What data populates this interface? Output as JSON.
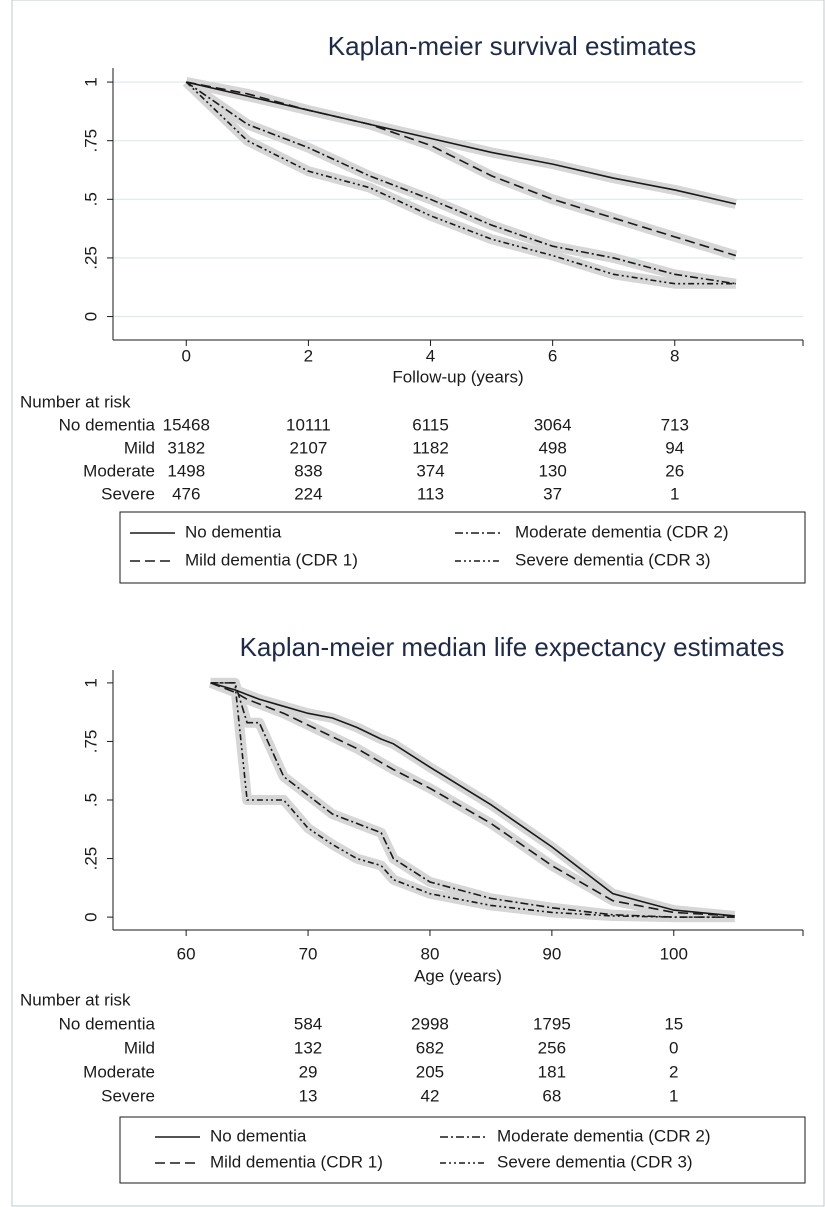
{
  "chart_data": [
    {
      "type": "line",
      "title": "Kaplan-meier survival estimates",
      "xlabel": "Follow-up (years)",
      "x": [
        0,
        1,
        2,
        3,
        4,
        5,
        6,
        7,
        8,
        9
      ],
      "xlim": [
        -1.2,
        10.1
      ],
      "xticks": [
        0,
        2,
        4,
        6,
        8
      ],
      "ylim": [
        -0.1,
        1.06
      ],
      "yticks": [
        0,
        {
          "value": 0.25,
          "label": ".25"
        },
        {
          "value": 0.5,
          "label": ".5"
        },
        {
          "value": 0.75,
          "label": ".75"
        },
        1
      ],
      "grid": true,
      "series": [
        {
          "name": "No dementia",
          "color": "#1a1a1a",
          "dash": "none",
          "values": [
            1,
            0.94,
            0.88,
            0.82,
            0.76,
            0.7,
            0.65,
            0.59,
            0.54,
            0.48
          ]
        },
        {
          "name": "Mild dementia (CDR 1)",
          "color": "#1a1a1a",
          "dash": "10,5",
          "values": [
            1,
            0.95,
            0.88,
            0.82,
            0.73,
            0.6,
            0.5,
            0.42,
            0.34,
            0.26
          ]
        },
        {
          "name": "Moderate dementia (CDR 2)",
          "color": "#1a1a1a",
          "dash": "8,3,2,3",
          "values": [
            1,
            0.82,
            0.72,
            0.6,
            0.5,
            0.39,
            0.3,
            0.25,
            0.18,
            0.14
          ]
        },
        {
          "name": "Severe dementia (CDR 3)",
          "color": "#1a1a1a",
          "dash": "6,3,2,3,2,3",
          "values": [
            1,
            0.75,
            0.62,
            0.55,
            0.43,
            0.33,
            0.26,
            0.18,
            0.14,
            0.14
          ]
        }
      ],
      "risk_table": {
        "title": "Number at risk",
        "rows": [
          {
            "label": "No dementia",
            "values": [
              15468,
              10111,
              6115,
              3064,
              713
            ]
          },
          {
            "label": "Mild",
            "values": [
              3182,
              2107,
              1182,
              498,
              94
            ]
          },
          {
            "label": "Moderate",
            "values": [
              1498,
              838,
              374,
              130,
              26
            ]
          },
          {
            "label": "Severe",
            "values": [
              476,
              224,
              113,
              37,
              1
            ]
          }
        ]
      }
    },
    {
      "type": "line",
      "title": "Kaplan-meier median life expectancy estimates",
      "xlabel": "Age (years)",
      "x": [
        62,
        64,
        65,
        66,
        68,
        70,
        72,
        74,
        76,
        77,
        80,
        85,
        90,
        95,
        100,
        105
      ],
      "xlim": [
        54,
        110.6
      ],
      "xticks": [
        60,
        70,
        80,
        90,
        100
      ],
      "ylim": [
        -0.055,
        1.055
      ],
      "yticks": [
        0,
        {
          "value": 0.25,
          "label": ".25"
        },
        {
          "value": 0.5,
          "label": ".5"
        },
        {
          "value": 0.75,
          "label": ".75"
        },
        1
      ],
      "grid": false,
      "series": [
        {
          "name": "No dementia",
          "color": "#1a1a1a",
          "dash": "none",
          "values": [
            1,
            0.97,
            0.95,
            0.93,
            0.9,
            0.87,
            0.85,
            0.81,
            0.76,
            0.74,
            0.64,
            0.48,
            0.3,
            0.1,
            0.03,
            0.005
          ]
        },
        {
          "name": "Mild dementia (CDR 1)",
          "color": "#1a1a1a",
          "dash": "10,5",
          "values": [
            1,
            0.96,
            0.93,
            0.91,
            0.87,
            0.82,
            0.77,
            0.72,
            0.66,
            0.63,
            0.55,
            0.4,
            0.22,
            0.07,
            0.02,
            0.005
          ]
        },
        {
          "name": "Moderate dementia (CDR 2)",
          "color": "#1a1a1a",
          "dash": "8,3,2,3",
          "values": [
            1,
            1,
            0.83,
            0.83,
            0.6,
            0.52,
            0.44,
            0.4,
            0.36,
            0.25,
            0.15,
            0.08,
            0.04,
            0.01,
            0,
            0
          ]
        },
        {
          "name": "Severe dementia (CDR 3)",
          "color": "#1a1a1a",
          "dash": "6,3,2,3,2,3",
          "values": [
            1,
            1,
            0.5,
            0.5,
            0.5,
            0.38,
            0.31,
            0.25,
            0.22,
            0.16,
            0.1,
            0.05,
            0.02,
            0.005,
            0,
            0
          ]
        }
      ],
      "risk_table": {
        "title": "Number at risk",
        "rows": [
          {
            "label": "No dementia",
            "values": [
              584,
              2998,
              1795,
              15
            ]
          },
          {
            "label": "Mild",
            "values": [
              132,
              682,
              256,
              0
            ]
          },
          {
            "label": "Moderate",
            "values": [
              29,
              205,
              181,
              2
            ]
          },
          {
            "label": "Severe",
            "values": [
              13,
              42,
              68,
              1
            ]
          }
        ]
      }
    }
  ]
}
